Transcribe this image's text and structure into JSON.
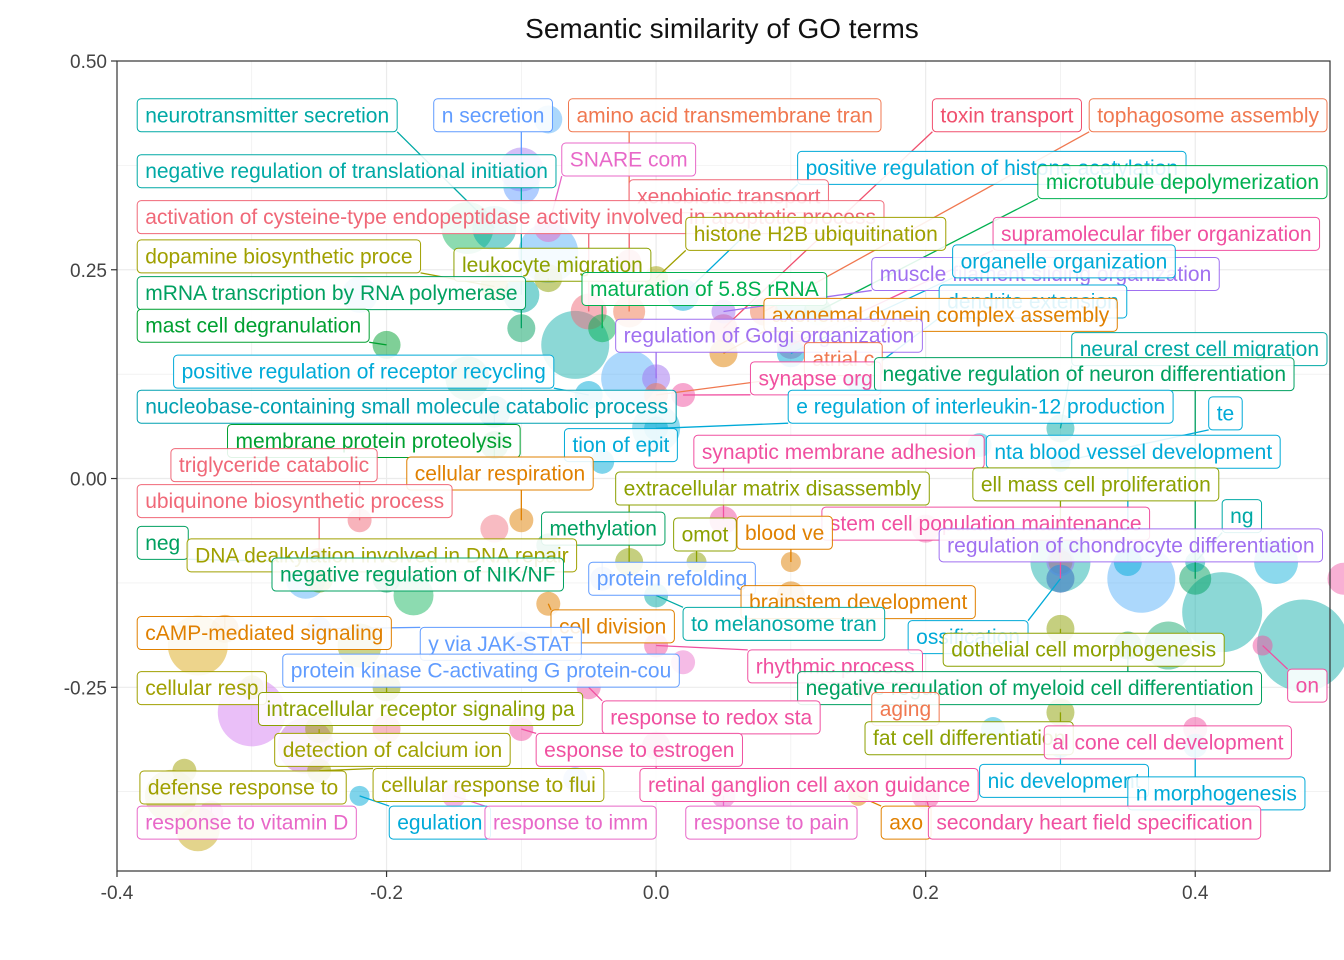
{
  "chart_data": {
    "type": "scatter",
    "title": "Semantic similarity of GO terms",
    "xlabel": "",
    "ylabel": "",
    "xlim": [
      -0.4,
      0.5
    ],
    "ylim": [
      -0.47,
      0.5
    ],
    "x_ticks": [
      -0.4,
      -0.2,
      0.0,
      0.2,
      0.4
    ],
    "y_ticks": [
      0.5,
      0.25,
      0.0,
      -0.25
    ],
    "x_tick_labels": [
      "-0.4",
      "-0.2",
      "0.0",
      "0.2",
      "0.4"
    ],
    "y_tick_labels": [
      "0.50",
      "0.25",
      "0.00",
      "-0.25"
    ],
    "grid": true,
    "legend": "none",
    "points": [
      {
        "label": "neurotransmitter secretion",
        "x": -0.12,
        "y": 0.3,
        "lx": -0.385,
        "ly": 0.435,
        "color": "#00A9A5",
        "r": 22
      },
      {
        "label": "n secretion",
        "x": -0.1,
        "y": 0.35,
        "lx": -0.165,
        "ly": 0.435,
        "color": "#619CFF",
        "r": 18
      },
      {
        "label": "amino acid transmembrane tran",
        "x": -0.02,
        "y": 0.2,
        "lx": -0.065,
        "ly": 0.435,
        "color": "#F07850",
        "r": 16
      },
      {
        "label": "toxin transport",
        "x": 0.05,
        "y": 0.18,
        "lx": 0.205,
        "ly": 0.435,
        "color": "#F0506E",
        "r": 14
      },
      {
        "label": "tophagosome assembly",
        "x": 0.08,
        "y": 0.2,
        "lx": 0.333,
        "ly": 0.435,
        "color": "#F07850",
        "r": 14
      },
      {
        "label": "SNARE com",
        "x": -0.08,
        "y": 0.3,
        "lx": -0.07,
        "ly": 0.382,
        "color": "#E868C8",
        "r": 14
      },
      {
        "label": "positive regulation of histone acetylation",
        "x": 0.02,
        "y": 0.22,
        "lx": 0.105,
        "ly": 0.372,
        "color": "#00AAD8",
        "r": 16
      },
      {
        "label": "negative regulation of translational initiation",
        "x": -0.1,
        "y": 0.22,
        "lx": -0.385,
        "ly": 0.368,
        "color": "#00A9A5",
        "r": 18
      },
      {
        "label": "xenobiotic transport",
        "x": -0.02,
        "y": 0.26,
        "lx": -0.02,
        "ly": 0.338,
        "color": "#F06878",
        "r": 12
      },
      {
        "label": "microtubule depolymerization",
        "x": 0.12,
        "y": 0.2,
        "lx": 0.29,
        "ly": 0.355,
        "color": "#00B050",
        "r": 14
      },
      {
        "label": "activation of cysteine-type endopeptidase activity involved in apoptotic process",
        "x": -0.05,
        "y": 0.2,
        "lx": -0.385,
        "ly": 0.313,
        "color": "#F06878",
        "r": 18
      },
      {
        "label": "histone H2B ubiquitination",
        "x": 0.0,
        "y": 0.24,
        "lx": 0.022,
        "ly": 0.293,
        "color": "#A0A000",
        "r": 12
      },
      {
        "label": "supramolecular fiber organization",
        "x": 0.1,
        "y": 0.16,
        "lx": 0.25,
        "ly": 0.293,
        "color": "#F050A0",
        "r": 14
      },
      {
        "label": "dopamine biosynthetic proce",
        "x": -0.12,
        "y": 0.23,
        "lx": -0.385,
        "ly": 0.266,
        "color": "#A0A000",
        "r": 14
      },
      {
        "label": "leukocyte migration",
        "x": -0.08,
        "y": 0.24,
        "lx": -0.15,
        "ly": 0.256,
        "color": "#8CA000",
        "r": 14
      },
      {
        "label": "muscle filament sliding organization",
        "x": 0.05,
        "y": 0.2,
        "lx": 0.16,
        "ly": 0.245,
        "color": "#A070F0",
        "r": 12
      },
      {
        "label": "organelle organization",
        "x": 0.1,
        "y": 0.15,
        "lx": 0.22,
        "ly": 0.26,
        "color": "#00AAD8",
        "r": 14
      },
      {
        "label": "mRNA transcription by RNA polymerase",
        "x": -0.1,
        "y": 0.18,
        "lx": -0.385,
        "ly": 0.222,
        "color": "#00A060",
        "r": 14
      },
      {
        "label": "maturation of 5.8S rRNA",
        "x": -0.04,
        "y": 0.18,
        "lx": -0.055,
        "ly": 0.227,
        "color": "#00B050",
        "r": 14
      },
      {
        "label": "dendrite extension",
        "x": 0.15,
        "y": 0.12,
        "lx": 0.21,
        "ly": 0.212,
        "color": "#00AAD8",
        "r": 14
      },
      {
        "label": "axonemal dynein complex assembly",
        "x": 0.05,
        "y": 0.15,
        "lx": 0.08,
        "ly": 0.196,
        "color": "#E08000",
        "r": 14
      },
      {
        "label": "mast cell degranulation",
        "x": -0.2,
        "y": 0.16,
        "lx": -0.385,
        "ly": 0.183,
        "color": "#00A030",
        "r": 14
      },
      {
        "label": "regulation of Golgi organization",
        "x": 0.0,
        "y": 0.12,
        "lx": -0.03,
        "ly": 0.171,
        "color": "#A070F0",
        "r": 14
      },
      {
        "label": "neural crest cell migration",
        "x": 0.3,
        "y": 0.06,
        "lx": 0.31,
        "ly": 0.155,
        "color": "#00A9A5",
        "r": 14
      },
      {
        "label": "atrial c",
        "x": 0.0,
        "y": 0.1,
        "lx": 0.11,
        "ly": 0.143,
        "color": "#F07850",
        "r": 12
      },
      {
        "label": "synapse org",
        "x": 0.02,
        "y": 0.1,
        "lx": 0.07,
        "ly": 0.12,
        "color": "#F050A0",
        "r": 12
      },
      {
        "label": "negative regulation of neuron differentiation",
        "x": 0.4,
        "y": -0.12,
        "lx": 0.162,
        "ly": 0.125,
        "color": "#00A060",
        "r": 16
      },
      {
        "label": "positive regulation of receptor recycling",
        "x": -0.05,
        "y": 0.1,
        "lx": -0.358,
        "ly": 0.128,
        "color": "#00AAD8",
        "r": 14
      },
      {
        "label": "nucleobase-containing small molecule catabolic process",
        "x": -0.12,
        "y": 0.08,
        "lx": -0.385,
        "ly": 0.086,
        "color": "#00A0B0",
        "r": 16
      },
      {
        "label": "e regulation of interleukin-12 production",
        "x": 0.0,
        "y": 0.06,
        "lx": 0.098,
        "ly": 0.086,
        "color": "#00AAD8",
        "r": 12
      },
      {
        "label": "te",
        "x": 0.3,
        "y": 0.02,
        "lx": 0.41,
        "ly": 0.078,
        "color": "#00AAD8",
        "r": 10
      },
      {
        "label": "membrane protein proteolysis",
        "x": -0.12,
        "y": 0.04,
        "lx": -0.318,
        "ly": 0.045,
        "color": "#00A030",
        "r": 14
      },
      {
        "label": "tion of epit",
        "x": -0.04,
        "y": 0.02,
        "lx": -0.068,
        "ly": 0.04,
        "color": "#00AAD8",
        "r": 12
      },
      {
        "label": "synaptic membrane adhesion",
        "x": 0.05,
        "y": -0.05,
        "lx": 0.028,
        "ly": 0.032,
        "color": "#F050A0",
        "r": 14
      },
      {
        "label": "nta blood vessel development",
        "x": 0.35,
        "y": -0.1,
        "lx": 0.245,
        "ly": 0.032,
        "color": "#00AAD8",
        "r": 14
      },
      {
        "label": "triglyceride catabolic",
        "x": -0.22,
        "y": -0.05,
        "lx": -0.36,
        "ly": 0.016,
        "color": "#F06878",
        "r": 12
      },
      {
        "label": "cellular respiration",
        "x": -0.1,
        "y": -0.05,
        "lx": -0.185,
        "ly": 0.006,
        "color": "#E08000",
        "r": 12
      },
      {
        "label": "ell mass cell proliferation",
        "x": 0.3,
        "y": -0.1,
        "lx": 0.235,
        "ly": -0.007,
        "color": "#8CA000",
        "r": 12
      },
      {
        "label": "extracellular matrix disassembly",
        "x": -0.02,
        "y": -0.1,
        "lx": -0.03,
        "ly": -0.012,
        "color": "#8CA000",
        "r": 14
      },
      {
        "label": "ubiquinone biosynthetic process",
        "x": -0.25,
        "y": -0.1,
        "lx": -0.385,
        "ly": -0.027,
        "color": "#F06878",
        "r": 14
      },
      {
        "label": "ng",
        "x": 0.4,
        "y": -0.1,
        "lx": 0.42,
        "ly": -0.045,
        "color": "#00A9A5",
        "r": 10
      },
      {
        "label": "stem cell population maintenance",
        "x": 0.3,
        "y": -0.12,
        "lx": 0.123,
        "ly": -0.054,
        "color": "#F050A0",
        "r": 14
      },
      {
        "label": "methylation",
        "x": -0.08,
        "y": -0.08,
        "lx": -0.085,
        "ly": -0.06,
        "color": "#00A060",
        "r": 12
      },
      {
        "label": "omot",
        "x": 0.03,
        "y": -0.1,
        "lx": 0.013,
        "ly": -0.067,
        "color": "#8CA000",
        "r": 10
      },
      {
        "label": "blood ve",
        "x": 0.1,
        "y": -0.1,
        "lx": 0.06,
        "ly": -0.065,
        "color": "#E08000",
        "r": 10
      },
      {
        "label": "regulation of chondrocyte differentiation",
        "x": 0.3,
        "y": -0.1,
        "lx": 0.21,
        "ly": -0.08,
        "color": "#A070F0",
        "r": 14
      },
      {
        "label": "neg",
        "x": -0.25,
        "y": -0.1,
        "lx": -0.385,
        "ly": -0.077,
        "color": "#00A060",
        "r": 12
      },
      {
        "label": "DNA dealkylation involved in DNA repair",
        "x": -0.25,
        "y": -0.12,
        "lx": -0.348,
        "ly": -0.092,
        "color": "#A0A000",
        "r": 14
      },
      {
        "label": "negative regulation of NIK/NF",
        "x": -0.2,
        "y": -0.12,
        "lx": -0.285,
        "ly": -0.115,
        "color": "#00A060",
        "r": 14
      },
      {
        "label": "protein refolding",
        "x": -0.04,
        "y": -0.12,
        "lx": -0.05,
        "ly": -0.12,
        "color": "#619CFF",
        "r": 12
      },
      {
        "label": "brainstem development",
        "x": 0.1,
        "y": -0.14,
        "lx": 0.063,
        "ly": -0.148,
        "color": "#E08000",
        "r": 14
      },
      {
        "label": "cell division",
        "x": -0.08,
        "y": -0.15,
        "lx": -0.078,
        "ly": -0.177,
        "color": "#E08000",
        "r": 12
      },
      {
        "label": "to melanosome tran",
        "x": 0.0,
        "y": -0.14,
        "lx": 0.02,
        "ly": -0.174,
        "color": "#00A9A5",
        "r": 12
      },
      {
        "label": "ossification",
        "x": 0.3,
        "y": -0.12,
        "lx": 0.187,
        "ly": -0.19,
        "color": "#00AAD8",
        "r": 14
      },
      {
        "label": "cAMP-mediated signaling",
        "x": -0.32,
        "y": -0.18,
        "lx": -0.385,
        "ly": -0.185,
        "color": "#E08000",
        "r": 14
      },
      {
        "label": "y via JAK-STAT",
        "x": -0.25,
        "y": -0.18,
        "lx": -0.175,
        "ly": -0.198,
        "color": "#619CFF",
        "r": 12
      },
      {
        "label": "dothelial cell morphogenesis",
        "x": 0.3,
        "y": -0.18,
        "lx": 0.213,
        "ly": -0.205,
        "color": "#8CA000",
        "r": 14
      },
      {
        "label": "protein kinase C-activating G protein-cou",
        "x": -0.1,
        "y": -0.2,
        "lx": -0.277,
        "ly": -0.23,
        "color": "#619CFF",
        "r": 14
      },
      {
        "label": "rhythmic process",
        "x": 0.0,
        "y": -0.2,
        "lx": 0.068,
        "ly": -0.225,
        "color": "#F050A0",
        "r": 12
      },
      {
        "label": "on",
        "x": 0.45,
        "y": -0.2,
        "lx": 0.49,
        "ly": -0.248,
        "color": "#F050A0",
        "r": 10
      },
      {
        "label": "cellular resp",
        "x": -0.3,
        "y": -0.25,
        "lx": -0.385,
        "ly": -0.251,
        "color": "#A0A000",
        "r": 12
      },
      {
        "label": "negative regulation of myeloid cell differentiation",
        "x": 0.35,
        "y": -0.2,
        "lx": 0.105,
        "ly": -0.251,
        "color": "#00A060",
        "r": 14
      },
      {
        "label": "intracellular receptor signaling pa",
        "x": -0.2,
        "y": -0.25,
        "lx": -0.295,
        "ly": -0.276,
        "color": "#8CA000",
        "r": 14
      },
      {
        "label": "response to redox sta",
        "x": -0.05,
        "y": -0.25,
        "lx": -0.04,
        "ly": -0.286,
        "color": "#F050A0",
        "r": 12
      },
      {
        "label": "aging",
        "x": 0.15,
        "y": -0.25,
        "lx": 0.16,
        "ly": -0.276,
        "color": "#F07850",
        "r": 10
      },
      {
        "label": "fat cell differentiation",
        "x": 0.3,
        "y": -0.28,
        "lx": 0.155,
        "ly": -0.311,
        "color": "#8CA000",
        "r": 14
      },
      {
        "label": "al cone cell development",
        "x": 0.4,
        "y": -0.3,
        "lx": 0.288,
        "ly": -0.316,
        "color": "#F050A0",
        "r": 12
      },
      {
        "label": "detection of calcium ion",
        "x": -0.25,
        "y": -0.3,
        "lx": -0.283,
        "ly": -0.325,
        "color": "#A0A000",
        "r": 14
      },
      {
        "label": "esponse to estrogen",
        "x": -0.1,
        "y": -0.3,
        "lx": -0.089,
        "ly": -0.325,
        "color": "#F050A0",
        "r": 12
      },
      {
        "label": "nic development",
        "x": 0.3,
        "y": -0.32,
        "lx": 0.24,
        "ly": -0.362,
        "color": "#00AAD8",
        "r": 12
      },
      {
        "label": "n morphogenesis",
        "x": 0.4,
        "y": -0.32,
        "lx": 0.35,
        "ly": -0.377,
        "color": "#00AAD8",
        "r": 12
      },
      {
        "label": "defense response to",
        "x": -0.35,
        "y": -0.35,
        "lx": -0.383,
        "ly": -0.37,
        "color": "#A0A000",
        "r": 12
      },
      {
        "label": "cellular response to flui",
        "x": -0.25,
        "y": -0.35,
        "lx": -0.21,
        "ly": -0.367,
        "color": "#A0A000",
        "r": 12
      },
      {
        "label": "retinal ganglion cell axon guidance",
        "x": 0.0,
        "y": -0.32,
        "lx": -0.012,
        "ly": -0.367,
        "color": "#F050A0",
        "r": 14
      },
      {
        "label": "response to vitamin D",
        "x": -0.33,
        "y": -0.4,
        "lx": -0.385,
        "ly": -0.412,
        "color": "#E868C8",
        "r": 12
      },
      {
        "label": "egulation",
        "x": -0.22,
        "y": -0.38,
        "lx": -0.198,
        "ly": -0.412,
        "color": "#00AAD8",
        "r": 10
      },
      {
        "label": "response to imm",
        "x": -0.15,
        "y": -0.38,
        "lx": -0.127,
        "ly": -0.412,
        "color": "#E868C8",
        "r": 12
      },
      {
        "label": "response to pain",
        "x": 0.05,
        "y": -0.38,
        "lx": 0.022,
        "ly": -0.412,
        "color": "#E868C8",
        "r": 12
      },
      {
        "label": "axo",
        "x": 0.15,
        "y": -0.38,
        "lx": 0.167,
        "ly": -0.412,
        "color": "#E08000",
        "r": 10
      },
      {
        "label": "secondary heart field specification",
        "x": 0.2,
        "y": -0.38,
        "lx": 0.202,
        "ly": -0.412,
        "color": "#F050A0",
        "r": 14
      }
    ],
    "extra_bubbles": [
      {
        "x": -0.08,
        "y": 0.43,
        "color": "#48A8F8",
        "r": 14
      },
      {
        "x": -0.1,
        "y": 0.37,
        "color": "#A070F0",
        "r": 22
      },
      {
        "x": -0.14,
        "y": 0.3,
        "color": "#00B050",
        "r": 26
      },
      {
        "x": -0.08,
        "y": 0.27,
        "color": "#48A8F8",
        "r": 30
      },
      {
        "x": -0.06,
        "y": 0.16,
        "color": "#00A9A5",
        "r": 34
      },
      {
        "x": -0.02,
        "y": 0.12,
        "color": "#48A8F8",
        "r": 28
      },
      {
        "x": 0.0,
        "y": 0.06,
        "color": "#00AAD8",
        "r": 24
      },
      {
        "x": -0.14,
        "y": 0.12,
        "color": "#00A060",
        "r": 22
      },
      {
        "x": -0.22,
        "y": 0.22,
        "color": "#48A8F8",
        "r": 18
      },
      {
        "x": 0.3,
        "y": -0.1,
        "color": "#00A9A5",
        "r": 30
      },
      {
        "x": 0.36,
        "y": -0.12,
        "color": "#48A8F8",
        "r": 34
      },
      {
        "x": 0.42,
        "y": -0.16,
        "color": "#00A9A5",
        "r": 40
      },
      {
        "x": 0.48,
        "y": -0.2,
        "color": "#00A9A5",
        "r": 46
      },
      {
        "x": 0.51,
        "y": -0.12,
        "color": "#F050A0",
        "r": 16
      },
      {
        "x": 0.46,
        "y": -0.1,
        "color": "#00AAD8",
        "r": 22
      },
      {
        "x": 0.38,
        "y": -0.2,
        "color": "#00A060",
        "r": 24
      },
      {
        "x": -0.34,
        "y": -0.2,
        "color": "#D8A000",
        "r": 30
      },
      {
        "x": -0.3,
        "y": -0.28,
        "color": "#D070F0",
        "r": 34
      },
      {
        "x": -0.26,
        "y": -0.32,
        "color": "#C060D0",
        "r": 28
      },
      {
        "x": -0.36,
        "y": -0.38,
        "color": "#A0A000",
        "r": 26
      },
      {
        "x": -0.34,
        "y": -0.42,
        "color": "#C0A000",
        "r": 22
      },
      {
        "x": -0.22,
        "y": -0.2,
        "color": "#8CA000",
        "r": 22
      },
      {
        "x": -0.18,
        "y": -0.14,
        "color": "#00B050",
        "r": 20
      },
      {
        "x": -0.26,
        "y": -0.12,
        "color": "#48A8F8",
        "r": 20
      },
      {
        "x": -0.12,
        "y": -0.06,
        "color": "#F06878",
        "r": 14
      },
      {
        "x": 0.2,
        "y": -0.06,
        "color": "#F050A0",
        "r": 14
      },
      {
        "x": 0.24,
        "y": 0.04,
        "color": "#00AAD8",
        "r": 12
      },
      {
        "x": 0.1,
        "y": 0.2,
        "color": "#00A9A5",
        "r": 16
      },
      {
        "x": -0.2,
        "y": -0.3,
        "color": "#F06878",
        "r": 14
      },
      {
        "x": 0.25,
        "y": -0.3,
        "color": "#00AAD8",
        "r": 12
      },
      {
        "x": 0.02,
        "y": -0.22,
        "color": "#E868C8",
        "r": 12
      },
      {
        "x": -0.06,
        "y": -0.36,
        "color": "#619CFF",
        "r": 12
      }
    ]
  }
}
